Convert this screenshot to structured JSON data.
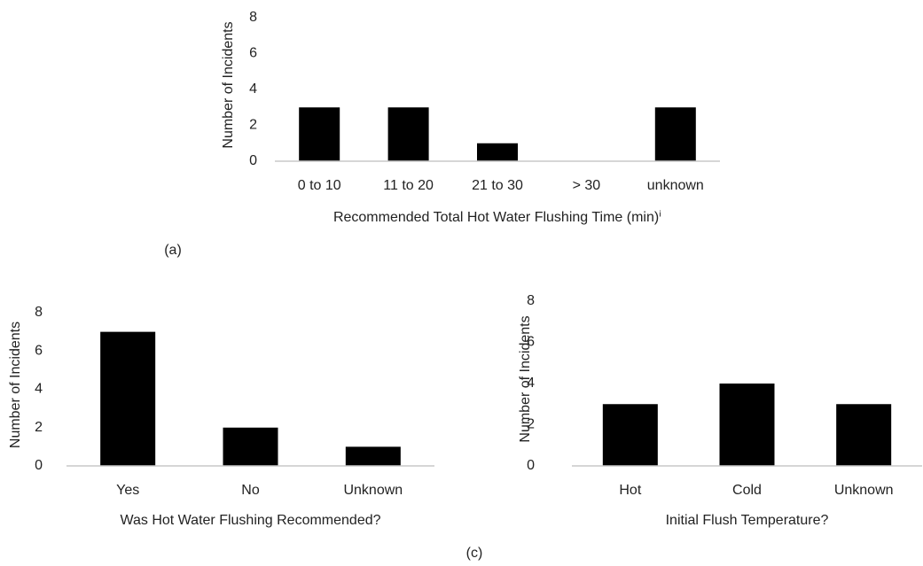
{
  "chart_data": [
    {
      "type": "bar",
      "x_label": "Recommended Total  Hot Water Flushing Time (min)ⁱ",
      "y_label": "Number of Incidents",
      "categories": [
        "0 to 10",
        "11 to 20",
        "21 to 30",
        "> 30",
        "unknown"
      ],
      "values": [
        3,
        3,
        1,
        0,
        3
      ],
      "color": "#000000",
      "ylim": [
        0,
        8
      ],
      "yticks": [
        0,
        2,
        4,
        6,
        8
      ],
      "grid": false
    },
    {
      "type": "bar",
      "x_label": "Was Hot Water Flushing Recommended?",
      "y_label": "Number of Incidents",
      "categories": [
        "Yes",
        "No",
        "Unknown"
      ],
      "values": [
        7,
        2,
        1
      ],
      "color": "#000000",
      "ylim": [
        0,
        8
      ],
      "yticks": [
        0,
        2,
        4,
        6,
        8
      ],
      "grid": false
    },
    {
      "type": "bar",
      "x_label": "Initial Flush Temperature?",
      "y_label": "Number of Incidents",
      "categories": [
        "Hot",
        "Cold",
        "Unknown"
      ],
      "values": [
        3,
        4,
        3
      ],
      "color": "#000000",
      "ylim": [
        0,
        8
      ],
      "yticks": [
        0,
        2,
        4,
        6,
        8
      ],
      "grid": false
    }
  ],
  "panel_labels": [
    "(a)",
    "(c)"
  ]
}
